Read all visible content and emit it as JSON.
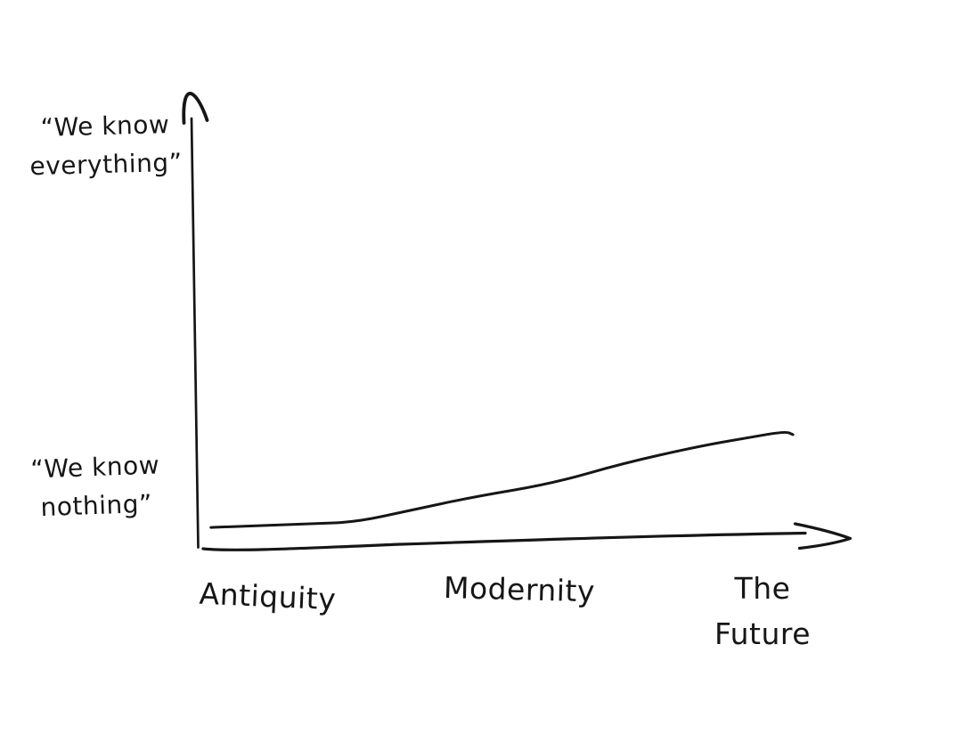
{
  "page": {
    "background_color": "#ffffff",
    "ink_color": "#161616",
    "style": "hand-drawn-sketch"
  },
  "chart_data": {
    "type": "line",
    "title": "",
    "xlabel": "",
    "ylabel": "",
    "grid": false,
    "legend": "none",
    "x_axis": {
      "tick_labels": [
        "Antiquity",
        "Modernity",
        "The Future"
      ],
      "arrow": "right"
    },
    "y_axis": {
      "top_label": "“We know\neverything”",
      "bottom_label": "“We know\nnothing”",
      "arrow": "up",
      "range_meaning": [
        0,
        1
      ]
    },
    "series": [
      {
        "name": "how-much-we-know (unlabeled line)",
        "points_norm": [
          [
            0.01,
            0.017
          ],
          [
            0.178,
            0.026
          ],
          [
            0.252,
            0.03
          ],
          [
            0.341,
            0.058
          ],
          [
            0.444,
            0.09
          ],
          [
            0.578,
            0.123
          ],
          [
            0.696,
            0.172
          ],
          [
            0.815,
            0.211
          ],
          [
            0.904,
            0.234
          ],
          [
            0.966,
            0.249
          ],
          [
            0.978,
            0.241
          ]
        ],
        "values_at_ticks": {
          "Antiquity": 0.02,
          "Modernity": 0.1,
          "The Future": 0.24
        }
      }
    ]
  }
}
